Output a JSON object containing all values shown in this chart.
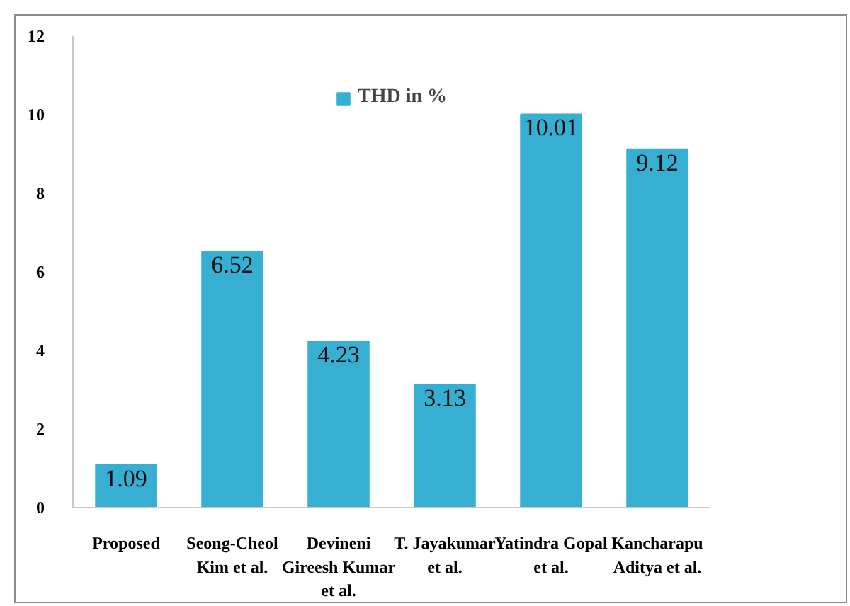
{
  "chart_data": {
    "type": "bar",
    "categories": [
      "Proposed",
      "Seong-Cheol Kim et al.",
      "Devineni Gireesh Kumar et al.",
      "T. Jayakumar et al.",
      "Yatindra Gopal et al.",
      "Kancharapu Aditya et al."
    ],
    "series": [
      {
        "name": "THD in %",
        "color": "#37afd2",
        "values": [
          1.09,
          6.52,
          4.23,
          3.13,
          10.01,
          9.12
        ]
      }
    ],
    "ylim": [
      0,
      12
    ],
    "yticks": [
      0,
      2,
      4,
      6,
      8,
      10,
      12
    ],
    "data_labels": true,
    "grid": false,
    "legend": "top"
  }
}
